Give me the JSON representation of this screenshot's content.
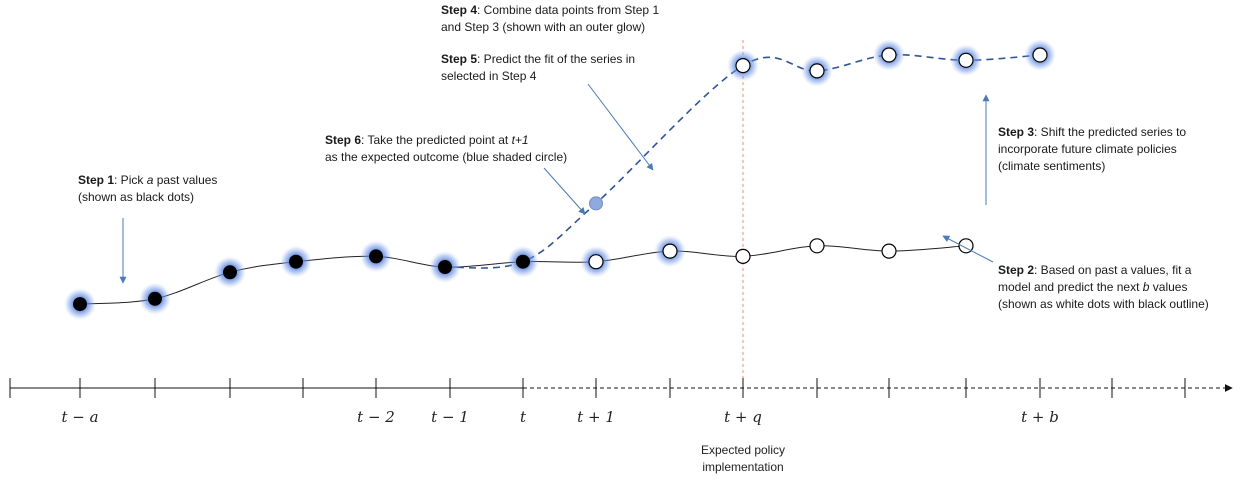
{
  "annotations": {
    "step1": {
      "bold": "Step 1",
      "pre": ": Pick ",
      "var": "a",
      "post": " past values",
      "line2": "(shown as black dots)"
    },
    "step2": {
      "bold": "Step 2",
      "pre": ": Based on past a values, fit a",
      "line2_pre": "model and predict the next ",
      "var": "b",
      "line2_post": " values",
      "line3": "(shown as white dots with black outline)"
    },
    "step3": {
      "bold": "Step 3",
      "line1": ": Shift the predicted series to",
      "line2": "incorporate future climate policies",
      "line3": "(climate sentiments)"
    },
    "step4": {
      "bold": "Step 4",
      "line1": ": Combine data points from Step 1",
      "line2": "and Step 3 (shown with an outer glow)"
    },
    "step5": {
      "bold": "Step 5",
      "line1": ": Predict the fit of the series in",
      "line2": "selected in Step 4"
    },
    "step6": {
      "bold": "Step 6",
      "line1_pre": ": Take the predicted point at ",
      "var": "t+1",
      "line2": "as the expected outcome (blue shaded circle)"
    }
  },
  "axis": {
    "tick_labels": [
      "t − a",
      "t − 2",
      "t − 1",
      "t",
      "t + 1",
      "t + q",
      "t + b"
    ],
    "policy_label_line1": "Expected policy",
    "policy_label_line2": "implementation"
  },
  "series": {
    "past_values": [
      3,
      4,
      9,
      11,
      12,
      10,
      11
    ],
    "predicted_values": [
      12,
      11,
      13,
      12,
      14,
      13,
      14
    ],
    "shifted_values": [
      48,
      47,
      50,
      49,
      50
    ],
    "expected_point": 22
  },
  "colors": {
    "glow": "#4a78d8",
    "arrow": "#4a7ab8",
    "dashed_line": "#2f5597",
    "expected_fill": "#8faadc",
    "policy_line": "#e8956a"
  }
}
